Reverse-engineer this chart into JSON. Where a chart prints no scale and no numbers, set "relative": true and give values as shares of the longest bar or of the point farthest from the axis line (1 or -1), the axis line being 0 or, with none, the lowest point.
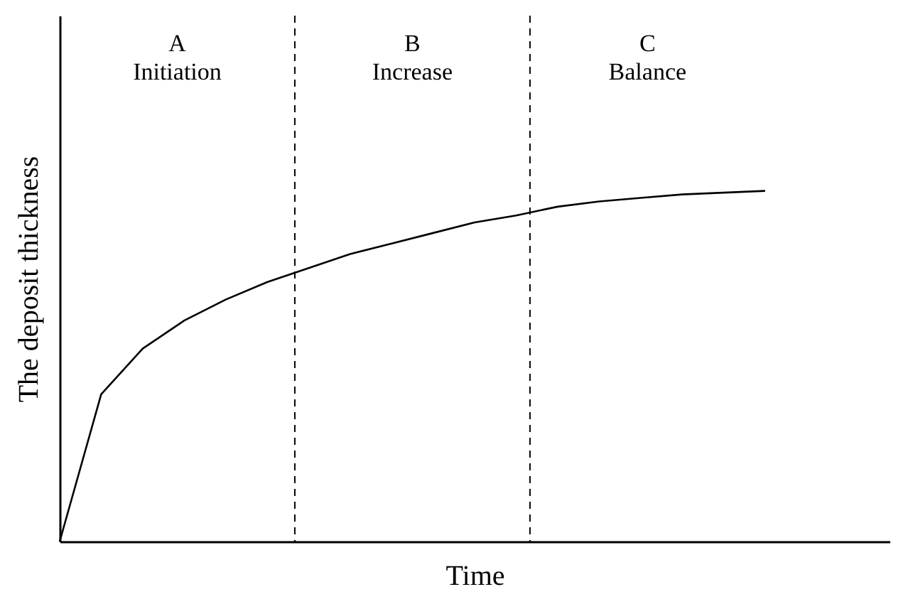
{
  "chart_data": {
    "type": "line",
    "xlabel": "Time",
    "ylabel": "The deposit thickness",
    "relative": true,
    "categories": [
      null,
      null,
      null,
      null,
      null,
      null,
      null,
      null,
      null,
      null,
      null,
      null,
      null,
      null,
      null,
      null,
      null,
      null,
      null,
      null,
      null
    ],
    "series": [
      {
        "color": "#000000",
        "values": [
          0,
          0.42,
          0.55,
          0.63,
          0.69,
          0.74,
          0.78,
          0.82,
          0.85,
          0.88,
          0.91,
          0.93,
          0.955,
          0.97,
          0.98,
          0.99,
          0.995,
          1,
          null,
          null,
          null
        ]
      }
    ],
    "annotations": [
      "A\nInitiation",
      "B\nIncrease",
      "C\nBalance"
    ]
  }
}
